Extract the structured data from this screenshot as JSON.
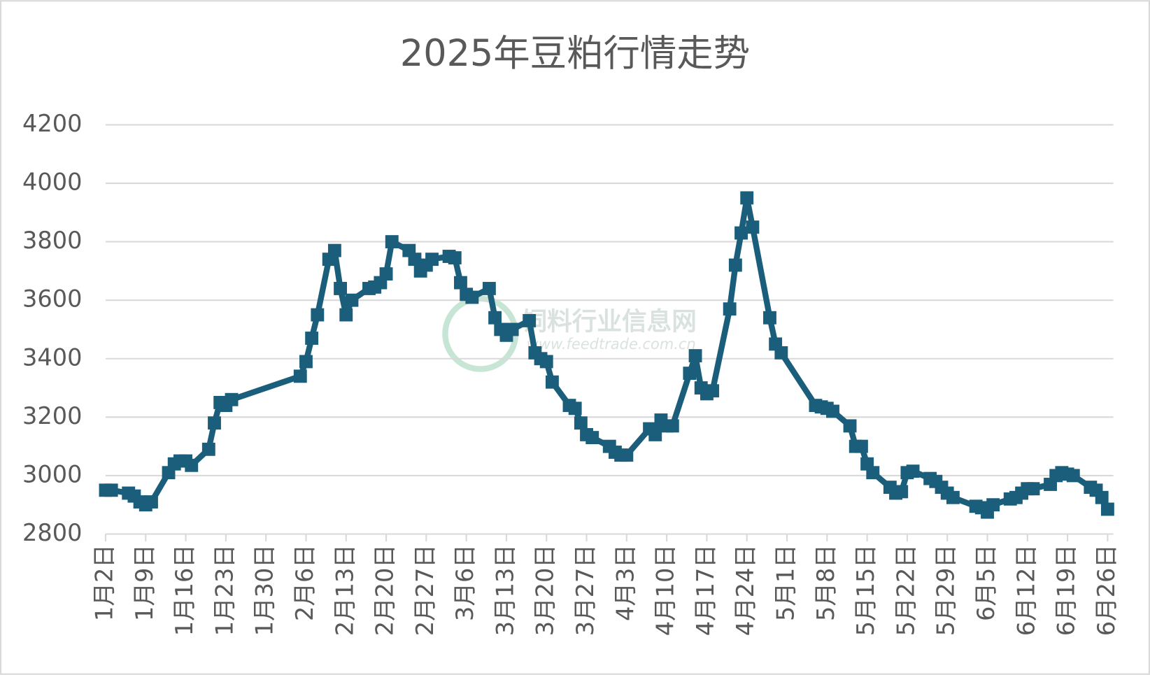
{
  "chart_data": {
    "type": "line",
    "title": "2025年豆粕行情走势",
    "watermark": [
      "饲料行业信息网",
      "www.feedtrade.com.cn"
    ],
    "color": "#1b5e7b",
    "ylim": [
      2800,
      4200
    ],
    "yticks": [
      2800,
      3000,
      3200,
      3400,
      3600,
      3800,
      4000,
      4200
    ],
    "grid": true,
    "xlim": [
      "1月2日",
      "6月27日"
    ],
    "xticks": [
      "1月2日",
      "1月9日",
      "1月16日",
      "1月23日",
      "1月30日",
      "2月6日",
      "2月13日",
      "2月20日",
      "2月27日",
      "3月6日",
      "3月13日",
      "3月20日",
      "3月27日",
      "4月3日",
      "4月10日",
      "4月17日",
      "4月24日",
      "5月1日",
      "5月8日",
      "5月15日",
      "5月22日",
      "5月29日",
      "6月5日",
      "6月12日",
      "6月19日",
      "6月26日"
    ],
    "x": [
      "1月2日",
      "1月3日",
      "1月6日",
      "1月7日",
      "1月8日",
      "1月9日",
      "1月10日",
      "1月13日",
      "1月14日",
      "1月15日",
      "1月16日",
      "1月17日",
      "1月20日",
      "1月21日",
      "1月22日",
      "1月23日",
      "1月24日",
      "2月5日",
      "2月6日",
      "2月7日",
      "2月8日",
      "2月10日",
      "2月11日",
      "2月12日",
      "2月13日",
      "2月14日",
      "2月17日",
      "2月18日",
      "2月19日",
      "2月20日",
      "2月21日",
      "2月24日",
      "2月25日",
      "2月26日",
      "2月27日",
      "2月28日",
      "3月3日",
      "3月4日",
      "3月5日",
      "3月6日",
      "3月7日",
      "3月10日",
      "3月11日",
      "3月12日",
      "3月13日",
      "3月14日",
      "3月17日",
      "3月18日",
      "3月19日",
      "3月20日",
      "3月21日",
      "3月24日",
      "3月25日",
      "3月26日",
      "3月27日",
      "3月28日",
      "3月31日",
      "4月1日",
      "4月2日",
      "4月3日",
      "4月7日",
      "4月8日",
      "4月9日",
      "4月10日",
      "4月11日",
      "4月14日",
      "4月15日",
      "4月16日",
      "4月17日",
      "4月18日",
      "4月21日",
      "4月22日",
      "4月23日",
      "4月24日",
      "4月25日",
      "4月28日",
      "4月29日",
      "4月30日",
      "5月6日",
      "5月7日",
      "5月8日",
      "5月9日",
      "5月12日",
      "5月13日",
      "5月14日",
      "5月15日",
      "5月16日",
      "5月19日",
      "5月20日",
      "5月21日",
      "5月22日",
      "5月23日",
      "5月26日",
      "5月27日",
      "5月28日",
      "5月29日",
      "5月30日",
      "6月3日",
      "6月4日",
      "6月5日",
      "6月6日",
      "6月9日",
      "6月10日",
      "6月11日",
      "6月12日",
      "6月13日",
      "6月16日",
      "6月17日",
      "6月18日",
      "6月19日",
      "6月20日",
      "6月23日",
      "6月24日",
      "6月25日",
      "6月26日"
    ],
    "values": [
      2950,
      2950,
      2940,
      2930,
      2910,
      2900,
      2910,
      3010,
      3040,
      3050,
      3050,
      3035,
      3090,
      3180,
      3250,
      3240,
      3260,
      3340,
      3390,
      3470,
      3550,
      3740,
      3770,
      3640,
      3550,
      3600,
      3640,
      3645,
      3660,
      3690,
      3800,
      3770,
      3740,
      3700,
      3720,
      3740,
      3750,
      3745,
      3660,
      3620,
      3610,
      3640,
      3540,
      3500,
      3480,
      3500,
      3530,
      3420,
      3400,
      3390,
      3320,
      3240,
      3230,
      3180,
      3140,
      3130,
      3100,
      3080,
      3070,
      3070,
      3160,
      3140,
      3190,
      3170,
      3170,
      3350,
      3410,
      3300,
      3280,
      3290,
      3570,
      3720,
      3830,
      3950,
      3850,
      3540,
      3450,
      3420,
      3240,
      3235,
      3230,
      3220,
      3170,
      3100,
      3100,
      3040,
      3010,
      2960,
      2940,
      2945,
      3010,
      3015,
      2990,
      2980,
      2960,
      2940,
      2925,
      2895,
      2890,
      2875,
      2900,
      2920,
      2925,
      2940,
      2955,
      2955,
      2970,
      3000,
      3010,
      3005,
      3000,
      2960,
      2950,
      2925,
      2885
    ]
  }
}
